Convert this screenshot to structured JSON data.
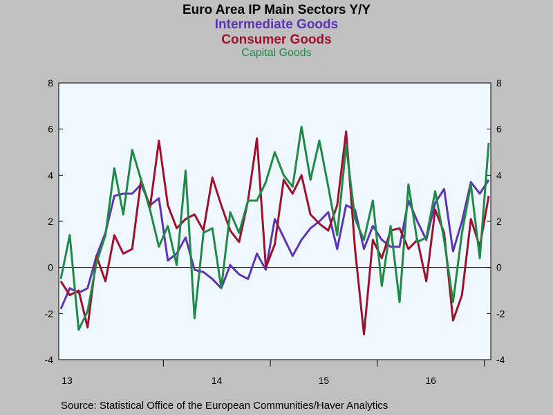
{
  "title": "Euro Area IP Main Sectors Y/Y",
  "legend": [
    {
      "label": "Intermediate Goods",
      "color": "#5b34b8"
    },
    {
      "label": "Consumer Goods",
      "color": "#a0102c"
    },
    {
      "label": "Capital Goods",
      "color": "#1e8a46"
    }
  ],
  "source": "Source:  Statistical Office of the European Communities/Haver Analytics",
  "chart_data": {
    "type": "line",
    "title": "Euro Area IP Main Sectors Y/Y",
    "xlabel": "",
    "ylabel": "",
    "x_tick_labels": [
      "13",
      "14",
      "15",
      "16"
    ],
    "y_ticks": [
      -4,
      -2,
      0,
      2,
      4,
      6,
      8
    ],
    "ylim": [
      -4,
      8
    ],
    "grid": false,
    "background": "#f0f8ff",
    "series": [
      {
        "name": "Intermediate Goods",
        "color": "#5b34b8",
        "values": [
          -1.8,
          -0.9,
          -1.1,
          -0.9,
          0.5,
          1.5,
          3.1,
          3.2,
          3.2,
          3.6,
          2.7,
          3.0,
          0.3,
          0.6,
          1.3,
          -0.1,
          -0.2,
          -0.5,
          -0.9,
          0.1,
          -0.3,
          -0.5,
          0.6,
          -0.1,
          2.1,
          1.3,
          0.5,
          1.2,
          1.7,
          2.0,
          2.4,
          0.8,
          2.7,
          2.5,
          0.8,
          1.8,
          1.2,
          0.9,
          0.9,
          2.9,
          2.0,
          1.2,
          2.8,
          3.4,
          0.7,
          2.0,
          3.7,
          3.2,
          3.8
        ]
      },
      {
        "name": "Consumer Goods",
        "color": "#a0102c",
        "values": [
          -0.6,
          -1.2,
          -1.0,
          -2.6,
          0.5,
          -0.6,
          1.4,
          0.6,
          0.8,
          3.8,
          2.6,
          5.5,
          2.7,
          1.7,
          2.1,
          2.3,
          1.6,
          3.9,
          2.7,
          1.6,
          1.1,
          2.9,
          5.6,
          0.0,
          1.0,
          3.8,
          3.2,
          4.0,
          2.3,
          1.9,
          1.6,
          2.7,
          5.9,
          0.8,
          -2.9,
          1.2,
          0.4,
          1.6,
          1.7,
          0.8,
          1.2,
          -0.6,
          2.5,
          1.5,
          -2.3,
          -1.2,
          2.1,
          0.9,
          3.1
        ]
      },
      {
        "name": "Capital Goods",
        "color": "#1e8a46",
        "values": [
          -0.5,
          1.4,
          -2.7,
          -1.9,
          0.2,
          1.4,
          4.3,
          2.3,
          5.1,
          3.8,
          2.5,
          0.9,
          1.8,
          0.1,
          4.2,
          -2.2,
          1.5,
          1.7,
          -0.9,
          2.4,
          1.5,
          2.9,
          2.9,
          3.7,
          5.0,
          4.0,
          3.5,
          6.1,
          3.8,
          5.5,
          3.5,
          1.4,
          5.3,
          2.1,
          1.2,
          2.9,
          -0.8,
          1.8,
          -1.5,
          3.6,
          1.1,
          1.3,
          3.3,
          1.2,
          -1.5,
          1.5,
          3.6,
          0.4,
          5.4
        ]
      }
    ]
  }
}
